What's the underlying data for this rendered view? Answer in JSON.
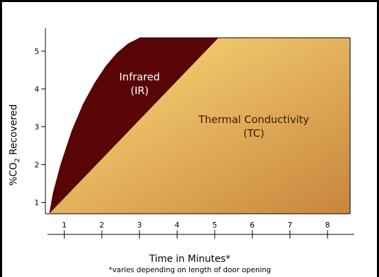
{
  "chart_data": {
    "type": "area",
    "xlabel": "Time in Minutes*",
    "ylabel_prefix": "%CO",
    "ylabel_sub": "2",
    "ylabel_suffix": " Recovered",
    "footnote": "*varies depending on length of door opening",
    "x_ticks": [
      1,
      2,
      3,
      4,
      5,
      6,
      7,
      8
    ],
    "y_ticks": [
      1,
      2,
      3,
      4,
      5
    ],
    "xlim": [
      0.5,
      8.6
    ],
    "ylim": [
      0.7,
      5.35
    ],
    "series": [
      {
        "label": "Infrared",
        "label_line2": "(IR)",
        "color": "#5a0505",
        "label_color": "#ffffff",
        "points": [
          [
            0.6,
            0.7
          ],
          [
            0.7,
            1.25
          ],
          [
            0.9,
            2.0
          ],
          [
            1.2,
            2.9
          ],
          [
            1.5,
            3.6
          ],
          [
            1.8,
            4.15
          ],
          [
            2.1,
            4.6
          ],
          [
            2.4,
            4.95
          ],
          [
            2.7,
            5.2
          ],
          [
            3.0,
            5.35
          ],
          [
            5.1,
            5.35
          ]
        ]
      },
      {
        "label": "Thermal Conductivity",
        "label_line2": "(TC)",
        "color_start": "#ffdf7e",
        "color_end": "#c8853c",
        "label_color": "#3a1a00",
        "points": [
          [
            0.6,
            0.7
          ],
          [
            5.1,
            5.35
          ],
          [
            8.6,
            5.35
          ],
          [
            8.6,
            0.7
          ]
        ]
      }
    ]
  }
}
